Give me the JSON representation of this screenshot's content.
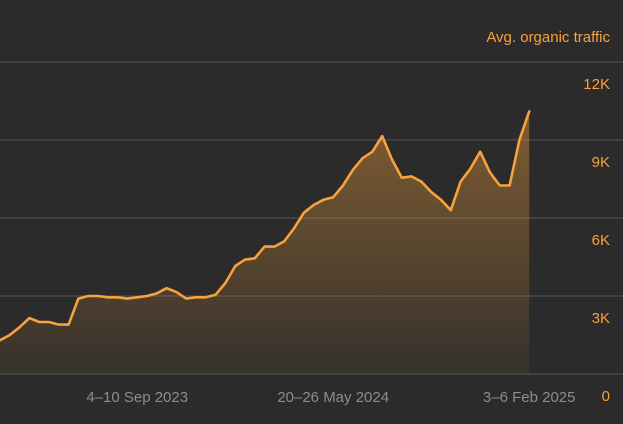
{
  "chart_data": {
    "type": "area",
    "title": "Avg. organic traffic",
    "categories": [
      null,
      null,
      null,
      null,
      null,
      null,
      null,
      null,
      null,
      null,
      null,
      null,
      null,
      null,
      "4–10 Sep 2023",
      null,
      null,
      null,
      null,
      null,
      null,
      null,
      null,
      null,
      null,
      null,
      null,
      null,
      null,
      null,
      null,
      null,
      null,
      null,
      "20–26 May 2024",
      null,
      null,
      null,
      null,
      null,
      null,
      null,
      null,
      null,
      null,
      null,
      null,
      null,
      null,
      null,
      null,
      null,
      null,
      null,
      "3–6 Feb 2025"
    ],
    "values": [
      1300,
      1500,
      1800,
      2150,
      2000,
      2000,
      1900,
      1900,
      2900,
      3000,
      3000,
      2950,
      2950,
      2900,
      2950,
      3000,
      3100,
      3300,
      3150,
      2900,
      2950,
      2950,
      3050,
      3500,
      4150,
      4400,
      4450,
      4900,
      4900,
      5100,
      5600,
      6200,
      6500,
      6700,
      6800,
      7250,
      7850,
      8300,
      8550,
      9150,
      8250,
      7550,
      7600,
      7400,
      7000,
      6700,
      6300,
      7400,
      7900,
      8550,
      7750,
      7250,
      7250,
      9000,
      10100
    ],
    "color": "#f7a23c",
    "ylim": [
      0,
      12000
    ],
    "yticks": [
      0,
      {
        "value": 3000,
        "label": "3K"
      },
      {
        "value": 6000,
        "label": "6K"
      },
      {
        "value": 9000,
        "label": "9K"
      },
      {
        "value": 12000,
        "label": "12K"
      }
    ],
    "grid": true
  }
}
